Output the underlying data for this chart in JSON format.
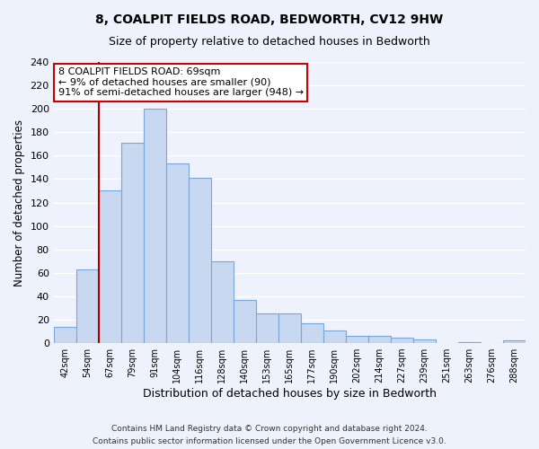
{
  "title": "8, COALPIT FIELDS ROAD, BEDWORTH, CV12 9HW",
  "subtitle": "Size of property relative to detached houses in Bedworth",
  "xlabel": "Distribution of detached houses by size in Bedworth",
  "ylabel": "Number of detached properties",
  "bar_color": "#c8d8f0",
  "bar_edge_color": "#7ba7d8",
  "background_color": "#eef2fc",
  "grid_color": "#ffffff",
  "bins": [
    "42sqm",
    "54sqm",
    "67sqm",
    "79sqm",
    "91sqm",
    "104sqm",
    "116sqm",
    "128sqm",
    "140sqm",
    "153sqm",
    "165sqm",
    "177sqm",
    "190sqm",
    "202sqm",
    "214sqm",
    "227sqm",
    "239sqm",
    "251sqm",
    "263sqm",
    "276sqm",
    "288sqm"
  ],
  "values": [
    14,
    63,
    130,
    171,
    200,
    153,
    141,
    70,
    37,
    25,
    25,
    17,
    11,
    6,
    6,
    5,
    3,
    0,
    1,
    0,
    2
  ],
  "ylim": [
    0,
    240
  ],
  "yticks": [
    0,
    20,
    40,
    60,
    80,
    100,
    120,
    140,
    160,
    180,
    200,
    220,
    240
  ],
  "property_line_index": 2,
  "property_line_color": "#aa0000",
  "annotation_title": "8 COALPIT FIELDS ROAD: 69sqm",
  "annotation_line1": "← 9% of detached houses are smaller (90)",
  "annotation_line2": "91% of semi-detached houses are larger (948) →",
  "annotation_box_color": "#ffffff",
  "annotation_box_edge_color": "#cc0000",
  "footer_line1": "Contains HM Land Registry data © Crown copyright and database right 2024.",
  "footer_line2": "Contains public sector information licensed under the Open Government Licence v3.0."
}
